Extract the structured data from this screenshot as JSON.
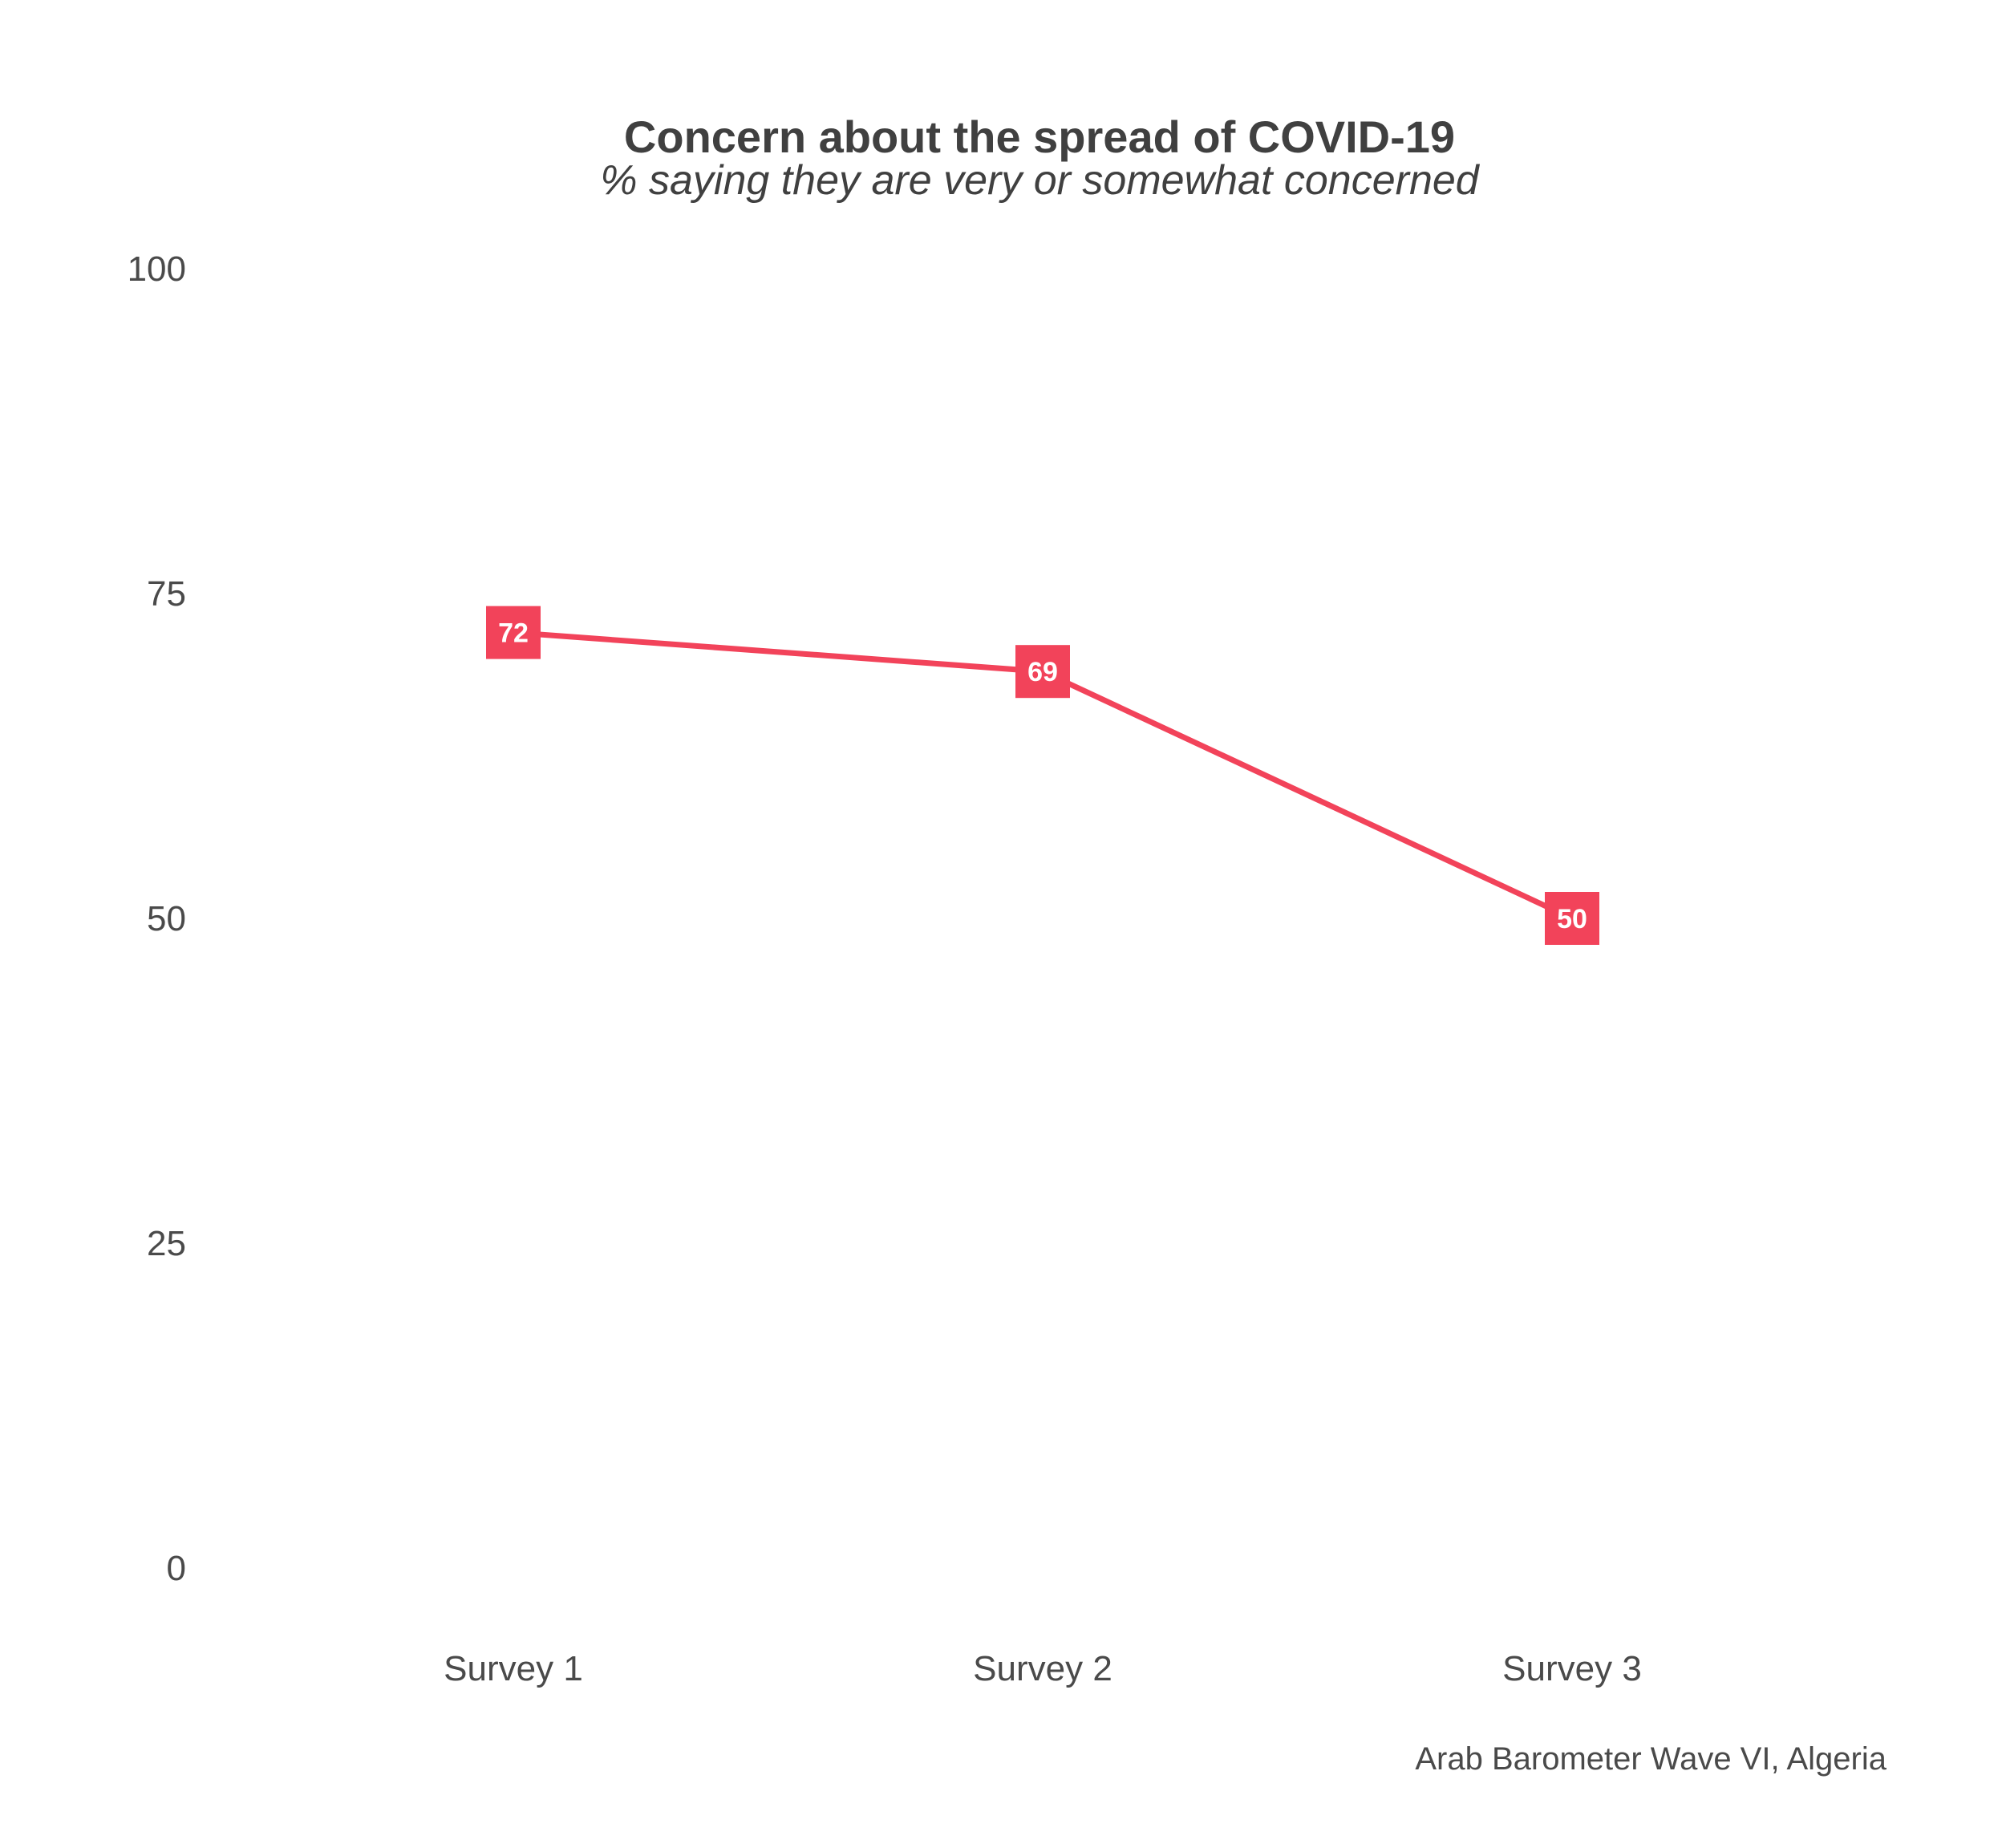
{
  "chart_data": {
    "type": "line",
    "title": "Concern about the spread of COVID-19",
    "subtitle": "% saying they are very or somewhat concerned",
    "caption": "Arab Barometer Wave VI, Algeria",
    "categories": [
      "Survey 1",
      "Survey 2",
      "Survey 3"
    ],
    "series": [
      {
        "values": [
          72,
          69,
          50
        ],
        "color": "#f2435a"
      }
    ],
    "ylim": [
      0,
      100
    ],
    "yticks": [
      0,
      25,
      50,
      75,
      100
    ],
    "grid": false,
    "legend": "none",
    "xlabel": "",
    "ylabel": ""
  }
}
